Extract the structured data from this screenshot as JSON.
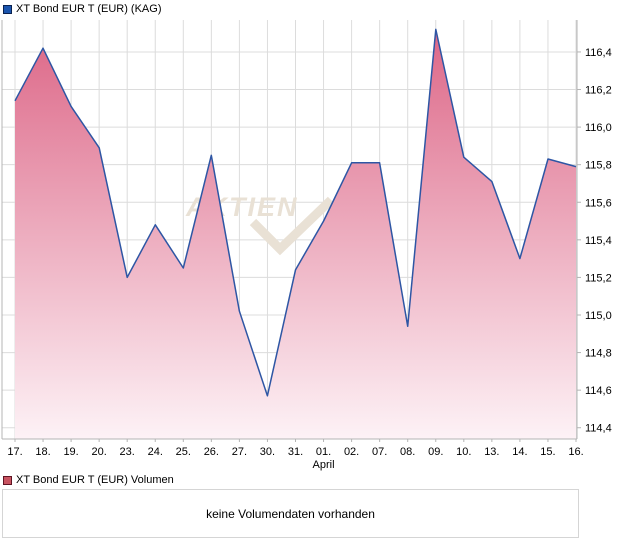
{
  "price_panel": {
    "legend_label": "XT Bond EUR T (EUR) (KAG)"
  },
  "volume_panel": {
    "legend_label": "XT Bond EUR T (EUR) Volumen",
    "message": "keine Volumendaten vorhanden"
  },
  "watermark": {
    "text": "AKTIEN",
    "symbol": "check-mark"
  },
  "colors": {
    "line": "#2e56a4",
    "area_top": "#dc6485",
    "area_bottom": "#fdf2f6",
    "grid": "#dcdcdc",
    "axis": "#b4b4b4",
    "tick_text": "#000000",
    "watermark": "#e9e1d5",
    "price_swatch_fill": "#1b55ae",
    "price_swatch_border": "#0a2250",
    "volume_swatch_fill": "#c85360",
    "volume_swatch_border": "#5f1422",
    "volume_box_border": "#d5d5d5"
  },
  "chart_data": {
    "type": "area",
    "title": "XT Bond EUR T (EUR) (KAG)",
    "x_labels": [
      "17.",
      "18.",
      "19.",
      "20.",
      "23.",
      "24.",
      "25.",
      "26.",
      "27.",
      "30.",
      "31.",
      "01.",
      "02.",
      "07.",
      "08.",
      "09.",
      "10.",
      "13.",
      "14.",
      "15.",
      "16."
    ],
    "values": [
      116.14,
      116.42,
      116.11,
      115.89,
      115.2,
      115.48,
      115.25,
      115.85,
      115.02,
      114.57,
      115.24,
      115.5,
      115.81,
      115.81,
      114.94,
      116.52,
      115.84,
      115.71,
      115.3,
      115.83,
      115.79
    ],
    "x_month_label": {
      "text": "April",
      "under": "01."
    },
    "y_ticks": [
      {
        "value": 116.4,
        "label": "116,4"
      },
      {
        "value": 116.2,
        "label": "116,2"
      },
      {
        "value": 116.0,
        "label": "116,0"
      },
      {
        "value": 115.8,
        "label": "115,8"
      },
      {
        "value": 115.6,
        "label": "115,6"
      },
      {
        "value": 115.4,
        "label": "115,4"
      },
      {
        "value": 115.2,
        "label": "115,2"
      },
      {
        "value": 115.0,
        "label": "115,0"
      },
      {
        "value": 114.8,
        "label": "114,8"
      },
      {
        "value": 114.6,
        "label": "114,6"
      },
      {
        "value": 114.4,
        "label": "114,4"
      }
    ],
    "ylim": [
      114.34,
      116.57
    ],
    "xlabel": "",
    "ylabel": "",
    "grid": true,
    "legend_position": "top-left",
    "y_axis_side": "right",
    "volume_message": "keine Volumendaten vorhanden"
  }
}
